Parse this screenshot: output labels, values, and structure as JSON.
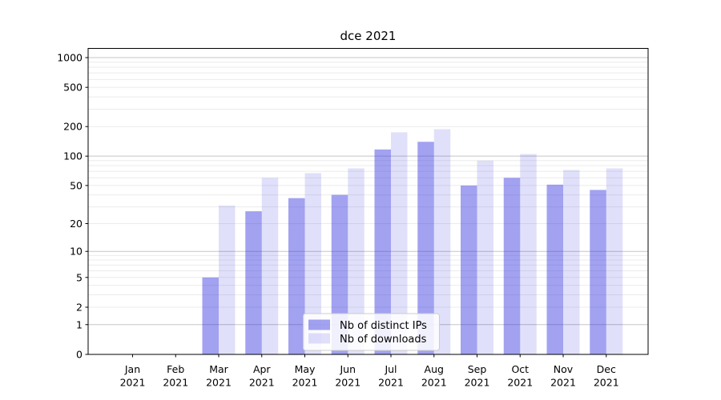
{
  "figure": {
    "title": "dce 2021",
    "background": "#ffffff"
  },
  "chart_data": {
    "type": "bar",
    "title": "dce 2021",
    "categories": [
      "Jan 2021",
      "Feb 2021",
      "Mar 2021",
      "Apr 2021",
      "May 2021",
      "Jun 2021",
      "Jul 2021",
      "Aug 2021",
      "Sep 2021",
      "Oct 2021",
      "Nov 2021",
      "Dec 2021"
    ],
    "series": [
      {
        "name": "Nb of distinct IPs",
        "color": "#a2a2f0",
        "fill": "rgba(48,48,224,0.45)",
        "values": [
          0,
          0,
          5,
          27,
          37,
          40,
          117,
          140,
          50,
          60,
          51,
          45
        ]
      },
      {
        "name": "Nb of downloads",
        "color": "#d9d9f8",
        "fill": "rgba(48,48,224,0.15)",
        "values": [
          0,
          0,
          31,
          60,
          67,
          75,
          175,
          188,
          90,
          105,
          72,
          75
        ]
      }
    ],
    "xlabel": "",
    "ylabel": "",
    "yscale": "log10(value+1)",
    "ylim": [
      0,
      1250
    ],
    "yticks": [
      0,
      1,
      2,
      5,
      10,
      20,
      50,
      100,
      200,
      500,
      1000
    ],
    "grid": {
      "major_color": "#c5c5c5",
      "minor_color": "#ebebeb",
      "major_at": [
        1,
        10,
        100,
        1000
      ],
      "minor_at": [
        2,
        3,
        4,
        5,
        6,
        7,
        8,
        9,
        20,
        30,
        40,
        50,
        60,
        70,
        80,
        90,
        200,
        300,
        400,
        500,
        600,
        700,
        800,
        900
      ]
    },
    "legend": {
      "position": "lower center",
      "background": "rgba(255,255,255,0.85)",
      "border_color": "#cccccc"
    },
    "axis_color": "#000000"
  }
}
